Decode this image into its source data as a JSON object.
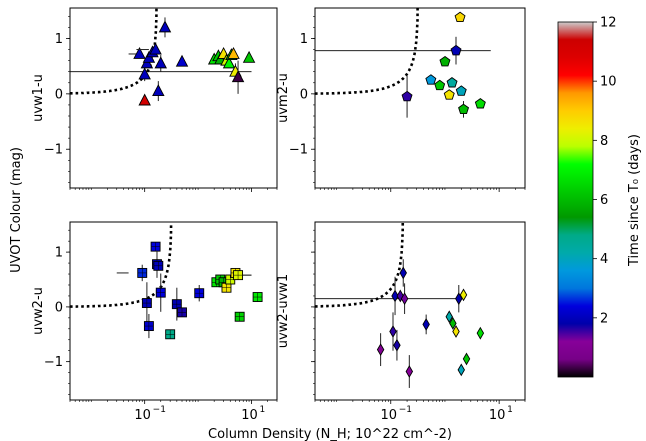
{
  "figure": {
    "xlabel": "Column Density (N_H; 10^22 cm^-2)",
    "ylabel": "UVOT Colour (mag)",
    "colorbar": {
      "label": "Time since T₀ (days)",
      "vmin": 0,
      "vmax": 12,
      "ticks": [
        "2",
        "4",
        "6",
        "8",
        "10",
        "12"
      ],
      "colormap": "nipy_spectral"
    }
  },
  "chart_data": [
    {
      "type": "scatter",
      "panel": "top-left",
      "ylabel": "uvw1-u",
      "xscale": "log",
      "xlim": [
        0.004,
        30
      ],
      "ylim": [
        -1.7,
        1.55
      ],
      "yticks": [
        "−1",
        "0",
        "1"
      ],
      "marker": "triangle",
      "hline": {
        "y": 0.4,
        "x_from": 0.004,
        "x_to": 10
      },
      "curve": {
        "style": "dotted",
        "x0": 0.17,
        "x_end": 0.004
      },
      "points": [
        {
          "x": 0.08,
          "y": 0.72,
          "t": 2.0,
          "xerr": [
            0.05,
            0.08
          ],
          "yerr": 0.08
        },
        {
          "x": 0.1,
          "y": 0.35,
          "t": 2.0,
          "yerr": 0.12
        },
        {
          "x": 0.11,
          "y": 0.55,
          "t": 2.0
        },
        {
          "x": 0.12,
          "y": 0.65,
          "t": 2.0
        },
        {
          "x": 0.14,
          "y": 0.75,
          "t": 2.0,
          "yerr": 0.1
        },
        {
          "x": 0.16,
          "y": 0.8,
          "t": 2.0,
          "xerr": [
            0.07,
            0.12
          ]
        },
        {
          "x": 0.18,
          "y": 0.05,
          "t": 2.0,
          "yerr": 0.18
        },
        {
          "x": 0.2,
          "y": 0.55,
          "t": 2.0,
          "yerr": 0.15
        },
        {
          "x": 0.24,
          "y": 1.2,
          "t": 2.0,
          "yerr": 0.18
        },
        {
          "x": 0.1,
          "y": -0.12,
          "t": 11.2
        },
        {
          "x": 0.5,
          "y": 0.58,
          "t": 2.2
        },
        {
          "x": 2.0,
          "y": 0.62,
          "t": 6.8
        },
        {
          "x": 2.4,
          "y": 0.68,
          "t": 6.3
        },
        {
          "x": 2.6,
          "y": 0.62,
          "t": 5.8
        },
        {
          "x": 3.0,
          "y": 0.72,
          "t": 8.6
        },
        {
          "x": 3.4,
          "y": 0.6,
          "t": 8.0
        },
        {
          "x": 3.8,
          "y": 0.55,
          "t": 7.0
        },
        {
          "x": 4.2,
          "y": 0.7,
          "t": 6.6
        },
        {
          "x": 4.6,
          "y": 0.72,
          "t": 9.2
        },
        {
          "x": 5.0,
          "y": 0.4,
          "t": 8.4,
          "yerr": 0.15
        },
        {
          "x": 5.6,
          "y": 0.3,
          "t": 0.3,
          "yerr": 0.3
        },
        {
          "x": 9.0,
          "y": 0.65,
          "t": 6.2
        }
      ]
    },
    {
      "type": "scatter",
      "panel": "top-right",
      "ylabel": "uvm2-u",
      "xscale": "log",
      "xlim": [
        0.004,
        30
      ],
      "ylim": [
        -1.7,
        1.55
      ],
      "yticks": [
        "−1",
        "0",
        "1"
      ],
      "marker": "pentagon",
      "hline": {
        "y": 0.78,
        "x_from": 0.004,
        "x_to": 7
      },
      "curve": {
        "style": "dotted",
        "x0": 0.32,
        "x_end": 0.004
      },
      "points": [
        {
          "x": 0.2,
          "y": -0.05,
          "t": 1.6,
          "yerr": 0.38
        },
        {
          "x": 0.55,
          "y": 0.25,
          "t": 3.6
        },
        {
          "x": 0.8,
          "y": 0.15,
          "t": 6.2
        },
        {
          "x": 1.0,
          "y": 0.58,
          "t": 5.8
        },
        {
          "x": 1.2,
          "y": -0.02,
          "t": 8.6
        },
        {
          "x": 1.35,
          "y": 0.2,
          "t": 4.4
        },
        {
          "x": 1.6,
          "y": 0.78,
          "t": 1.9,
          "yerr": 0.25
        },
        {
          "x": 1.9,
          "y": 1.38,
          "t": 8.8
        },
        {
          "x": 2.0,
          "y": 0.05,
          "t": 4.0
        },
        {
          "x": 2.2,
          "y": -0.28,
          "t": 6.0,
          "yerr": 0.15
        },
        {
          "x": 4.5,
          "y": -0.18,
          "t": 6.6
        }
      ]
    },
    {
      "type": "scatter",
      "panel": "bottom-left",
      "ylabel": "uvw2-u",
      "xscale": "log",
      "xlim": [
        0.004,
        30
      ],
      "ylim": [
        -1.7,
        1.55
      ],
      "yticks": [
        "−1",
        "0",
        "1"
      ],
      "marker": "square",
      "hline": {
        "y": 0.58,
        "x_from": 4.5,
        "x_to": 10
      },
      "curve": {
        "style": "dotted",
        "x0": 0.32,
        "x_end": 0.004
      },
      "points": [
        {
          "x": 0.09,
          "y": 0.62,
          "t": 2.6,
          "xerr": [
            0.03,
            0.05
          ],
          "yerr": 0.15
        },
        {
          "x": 0.11,
          "y": 0.07,
          "t": 2.0,
          "yerr": 0.38
        },
        {
          "x": 0.12,
          "y": -0.35,
          "t": 2.2,
          "yerr": 0.22
        },
        {
          "x": 0.16,
          "y": 1.1,
          "t": 2.4
        },
        {
          "x": 0.17,
          "y": 0.78,
          "t": 2.2,
          "yerr": 0.25
        },
        {
          "x": 0.18,
          "y": 0.75,
          "t": 2.0
        },
        {
          "x": 0.2,
          "y": 0.26,
          "t": 2.4,
          "yerr": 0.35
        },
        {
          "x": 0.3,
          "y": -0.5,
          "t": 4.8
        },
        {
          "x": 0.4,
          "y": 0.05,
          "t": 1.9,
          "yerr": 0.3
        },
        {
          "x": 0.5,
          "y": -0.1,
          "t": 1.7
        },
        {
          "x": 1.05,
          "y": 0.25,
          "t": 2.4,
          "yerr": 0.15
        },
        {
          "x": 2.2,
          "y": 0.45,
          "t": 6.8
        },
        {
          "x": 2.6,
          "y": 0.5,
          "t": 6.3
        },
        {
          "x": 3.0,
          "y": 0.45,
          "t": 5.8
        },
        {
          "x": 3.4,
          "y": 0.35,
          "t": 8.6
        },
        {
          "x": 4.0,
          "y": 0.5,
          "t": 8.0
        },
        {
          "x": 5.0,
          "y": 0.62,
          "t": 8.6
        },
        {
          "x": 5.6,
          "y": 0.58,
          "t": 8.2
        },
        {
          "x": 6.0,
          "y": -0.18,
          "t": 6.4
        },
        {
          "x": 13.0,
          "y": 0.18,
          "t": 6.8
        }
      ]
    },
    {
      "type": "scatter",
      "panel": "bottom-right",
      "ylabel": "uvw2-uvw1",
      "xscale": "log",
      "xlim": [
        0.004,
        30
      ],
      "ylim": [
        -1.7,
        1.55
      ],
      "marker": "thin-diamond",
      "hline": {
        "y": 0.15,
        "x_from": 0.004,
        "x_to": 1.6
      },
      "curve": {
        "style": "dotted",
        "x0": 0.17,
        "x_end": 0.004
      },
      "points": [
        {
          "x": 0.065,
          "y": -0.78,
          "t": 1.0,
          "yerr": 0.3
        },
        {
          "x": 0.11,
          "y": -0.45,
          "t": 1.6,
          "yerr": 0.35
        },
        {
          "x": 0.12,
          "y": 0.2,
          "t": 1.9,
          "yerr": 0.35
        },
        {
          "x": 0.13,
          "y": -0.7,
          "t": 1.7,
          "yerr": 0.28
        },
        {
          "x": 0.15,
          "y": 0.2,
          "t": 1.5
        },
        {
          "x": 0.17,
          "y": 0.62,
          "t": 1.9,
          "yerr": 0.25
        },
        {
          "x": 0.18,
          "y": 0.15,
          "t": 1.3,
          "yerr": 0.28
        },
        {
          "x": 0.22,
          "y": -1.18,
          "t": 1.2,
          "yerr": 0.3
        },
        {
          "x": 0.45,
          "y": -0.32,
          "t": 1.9,
          "yerr": 0.18
        },
        {
          "x": 1.2,
          "y": -0.18,
          "t": 4.2
        },
        {
          "x": 1.4,
          "y": -0.3,
          "t": 6.0
        },
        {
          "x": 1.6,
          "y": -0.45,
          "t": 8.6
        },
        {
          "x": 1.8,
          "y": 0.15,
          "t": 1.8,
          "yerr": 0.25
        },
        {
          "x": 2.0,
          "y": -1.15,
          "t": 4.0
        },
        {
          "x": 2.2,
          "y": 0.22,
          "t": 8.4
        },
        {
          "x": 2.5,
          "y": -0.95,
          "t": 6.2
        },
        {
          "x": 4.5,
          "y": -0.48,
          "t": 6.6
        }
      ]
    }
  ]
}
